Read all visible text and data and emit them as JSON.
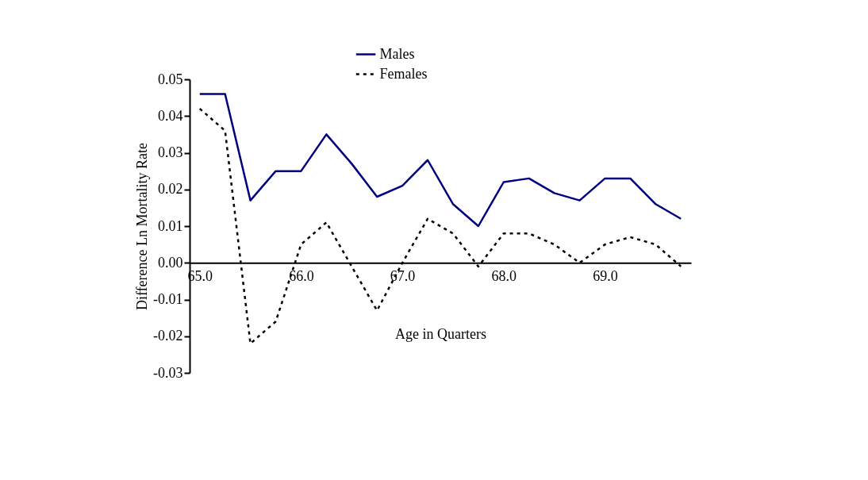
{
  "chart_data": {
    "type": "line",
    "xlabel": "Age in Quarters",
    "ylabel": "Difference Ln Mortality Rate",
    "x": [
      65.0,
      65.25,
      65.5,
      65.75,
      66.0,
      66.25,
      66.5,
      66.75,
      67.0,
      67.25,
      67.5,
      67.75,
      68.0,
      68.25,
      68.5,
      68.75,
      69.0,
      69.25,
      69.5,
      69.75
    ],
    "series": [
      {
        "name": "Males",
        "color": "#000080",
        "line_style": "solid",
        "values": [
          0.046,
          0.046,
          0.017,
          0.025,
          0.025,
          0.035,
          0.027,
          0.018,
          0.021,
          0.028,
          0.016,
          0.01,
          0.022,
          0.023,
          0.019,
          0.017,
          0.023,
          0.023,
          0.016,
          0.012
        ]
      },
      {
        "name": "Females",
        "color": "#000000",
        "line_style": "dotted",
        "values": [
          0.042,
          0.036,
          -0.022,
          -0.016,
          0.005,
          0.011,
          -0.001,
          -0.013,
          0.0,
          0.012,
          0.008,
          -0.001,
          0.008,
          0.008,
          0.005,
          0.0,
          0.005,
          0.007,
          0.005,
          -0.001
        ]
      }
    ],
    "xlim": [
      64.9,
      69.85
    ],
    "xticks": [
      {
        "value": 65,
        "label": "65.0"
      },
      {
        "value": 66,
        "label": "66.0"
      },
      {
        "value": 67,
        "label": "67.0"
      },
      {
        "value": 68,
        "label": "68.0"
      },
      {
        "value": 69,
        "label": "69.0"
      }
    ],
    "ylim": [
      -0.03,
      0.05
    ],
    "yticks": [
      {
        "value": -0.03,
        "label": "-0.03"
      },
      {
        "value": -0.02,
        "label": "-0.02"
      },
      {
        "value": -0.01,
        "label": "-0.01"
      },
      {
        "value": 0,
        "label": "0.00"
      },
      {
        "value": 0.01,
        "label": "0.01"
      },
      {
        "value": 0.02,
        "label": "0.02"
      },
      {
        "value": 0.03,
        "label": "0.03"
      },
      {
        "value": 0.04,
        "label": "0.04"
      },
      {
        "value": 0.05,
        "label": "0.05"
      }
    ],
    "legend": "top",
    "grid": false,
    "marker": "none"
  }
}
